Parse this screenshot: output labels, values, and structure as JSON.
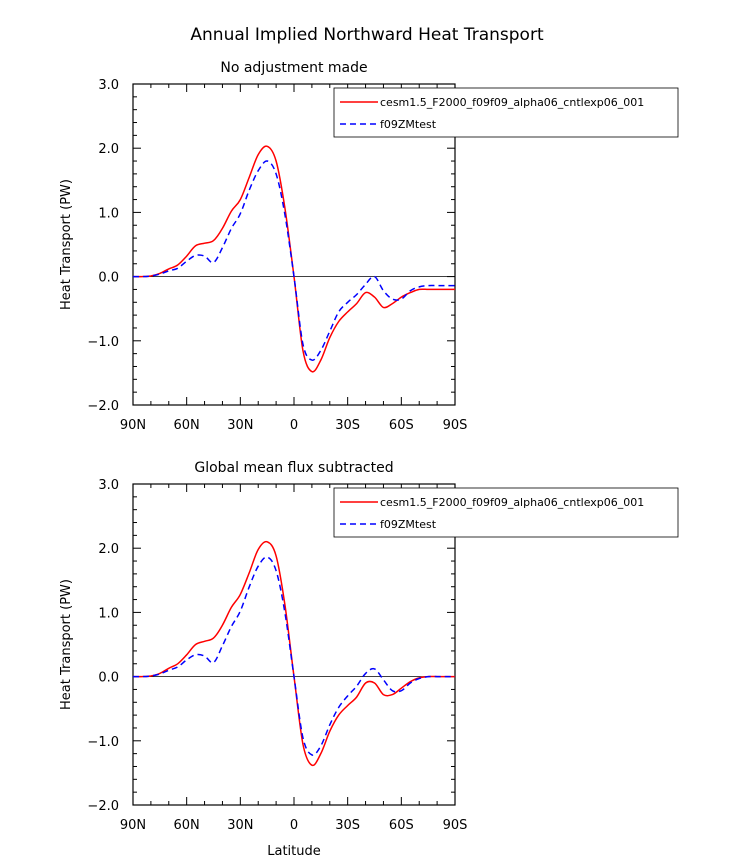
{
  "page_title": "Annual Implied Northward Heat Transport",
  "chart_data": [
    {
      "type": "line",
      "title": "No adjustment made",
      "xlabel": "",
      "ylabel": "Heat Transport (PW)",
      "xlim": [
        -90,
        90
      ],
      "ylim": [
        -2.0,
        3.0
      ],
      "xticks": [
        -90,
        -60,
        -30,
        0,
        30,
        60,
        90
      ],
      "xtick_labels": [
        "90N",
        "60N",
        "30N",
        "0",
        "30S",
        "60S",
        "90S"
      ],
      "yticks": [
        -2,
        -1,
        0,
        1,
        2,
        3
      ],
      "ytick_labels": [
        "−2.0",
        "−1.0",
        "0.0",
        "1.0",
        "2.0",
        "3.0"
      ],
      "legend_position": "top-right",
      "series": [
        {
          "name": "cesm1.5_F2000_f09f09_alpha06_cntlexp06_001",
          "color": "#ff0000",
          "dash": "solid",
          "x": [
            -90,
            -85,
            -80,
            -75,
            -70,
            -65,
            -60,
            -55,
            -50,
            -45,
            -40,
            -35,
            -30,
            -25,
            -20,
            -15,
            -10,
            -5,
            0,
            5,
            10,
            15,
            20,
            25,
            30,
            35,
            40,
            45,
            50,
            55,
            60,
            65,
            70,
            75,
            80,
            85,
            90
          ],
          "y": [
            0.0,
            0.0,
            0.01,
            0.05,
            0.12,
            0.18,
            0.32,
            0.48,
            0.52,
            0.56,
            0.75,
            1.02,
            1.2,
            1.55,
            1.9,
            2.03,
            1.8,
            1.05,
            0.0,
            -1.15,
            -1.48,
            -1.3,
            -0.95,
            -0.7,
            -0.55,
            -0.42,
            -0.25,
            -0.32,
            -0.48,
            -0.42,
            -0.32,
            -0.25,
            -0.2,
            -0.2,
            -0.2,
            -0.2,
            -0.2
          ]
        },
        {
          "name": "f09ZMtest",
          "color": "#0000ff",
          "dash": "dashed",
          "x": [
            -90,
            -85,
            -80,
            -75,
            -70,
            -65,
            -60,
            -55,
            -50,
            -45,
            -40,
            -35,
            -30,
            -25,
            -20,
            -15,
            -10,
            -5,
            0,
            5,
            10,
            15,
            20,
            25,
            30,
            35,
            40,
            45,
            50,
            55,
            60,
            65,
            70,
            75,
            80,
            85,
            90
          ],
          "y": [
            0.0,
            0.0,
            0.01,
            0.04,
            0.09,
            0.13,
            0.24,
            0.33,
            0.32,
            0.22,
            0.45,
            0.75,
            0.98,
            1.35,
            1.65,
            1.8,
            1.6,
            0.95,
            0.0,
            -1.05,
            -1.3,
            -1.15,
            -0.85,
            -0.55,
            -0.4,
            -0.28,
            -0.12,
            0.0,
            -0.22,
            -0.35,
            -0.35,
            -0.22,
            -0.16,
            -0.14,
            -0.14,
            -0.14,
            -0.14
          ]
        }
      ]
    },
    {
      "type": "line",
      "title": "Global mean flux subtracted",
      "xlabel": "Latitude",
      "ylabel": "Heat Transport (PW)",
      "xlim": [
        -90,
        90
      ],
      "ylim": [
        -2.0,
        3.0
      ],
      "xticks": [
        -90,
        -60,
        -30,
        0,
        30,
        60,
        90
      ],
      "xtick_labels": [
        "90N",
        "60N",
        "30N",
        "0",
        "30S",
        "60S",
        "90S"
      ],
      "yticks": [
        -2,
        -1,
        0,
        1,
        2,
        3
      ],
      "ytick_labels": [
        "−2.0",
        "−1.0",
        "0.0",
        "1.0",
        "2.0",
        "3.0"
      ],
      "legend_position": "top-right",
      "series": [
        {
          "name": "cesm1.5_F2000_f09f09_alpha06_cntlexp06_001",
          "color": "#ff0000",
          "dash": "solid",
          "x": [
            -90,
            -85,
            -80,
            -75,
            -70,
            -65,
            -60,
            -55,
            -50,
            -45,
            -40,
            -35,
            -30,
            -25,
            -20,
            -15,
            -10,
            -5,
            0,
            5,
            10,
            15,
            20,
            25,
            30,
            35,
            40,
            45,
            50,
            55,
            60,
            65,
            70,
            75,
            80,
            85,
            90
          ],
          "y": [
            0.0,
            0.0,
            0.01,
            0.05,
            0.13,
            0.2,
            0.34,
            0.5,
            0.55,
            0.6,
            0.8,
            1.08,
            1.28,
            1.62,
            1.98,
            2.1,
            1.88,
            1.1,
            0.0,
            -1.05,
            -1.38,
            -1.2,
            -0.85,
            -0.6,
            -0.45,
            -0.32,
            -0.1,
            -0.1,
            -0.28,
            -0.28,
            -0.18,
            -0.08,
            -0.02,
            0.0,
            0.0,
            0.0,
            0.0
          ]
        },
        {
          "name": "f09ZMtest",
          "color": "#0000ff",
          "dash": "dashed",
          "x": [
            -90,
            -85,
            -80,
            -75,
            -70,
            -65,
            -60,
            -55,
            -50,
            -45,
            -40,
            -35,
            -30,
            -25,
            -20,
            -15,
            -10,
            -5,
            0,
            5,
            10,
            15,
            20,
            25,
            30,
            35,
            40,
            45,
            50,
            55,
            60,
            65,
            70,
            75,
            80,
            85,
            90
          ],
          "y": [
            0.0,
            0.0,
            0.01,
            0.04,
            0.1,
            0.15,
            0.26,
            0.34,
            0.32,
            0.22,
            0.48,
            0.78,
            1.02,
            1.4,
            1.72,
            1.86,
            1.65,
            0.98,
            0.0,
            -0.95,
            -1.22,
            -1.08,
            -0.75,
            -0.48,
            -0.3,
            -0.15,
            0.05,
            0.12,
            -0.05,
            -0.22,
            -0.22,
            -0.1,
            -0.03,
            0.0,
            0.0,
            0.0,
            0.0
          ]
        }
      ]
    }
  ]
}
